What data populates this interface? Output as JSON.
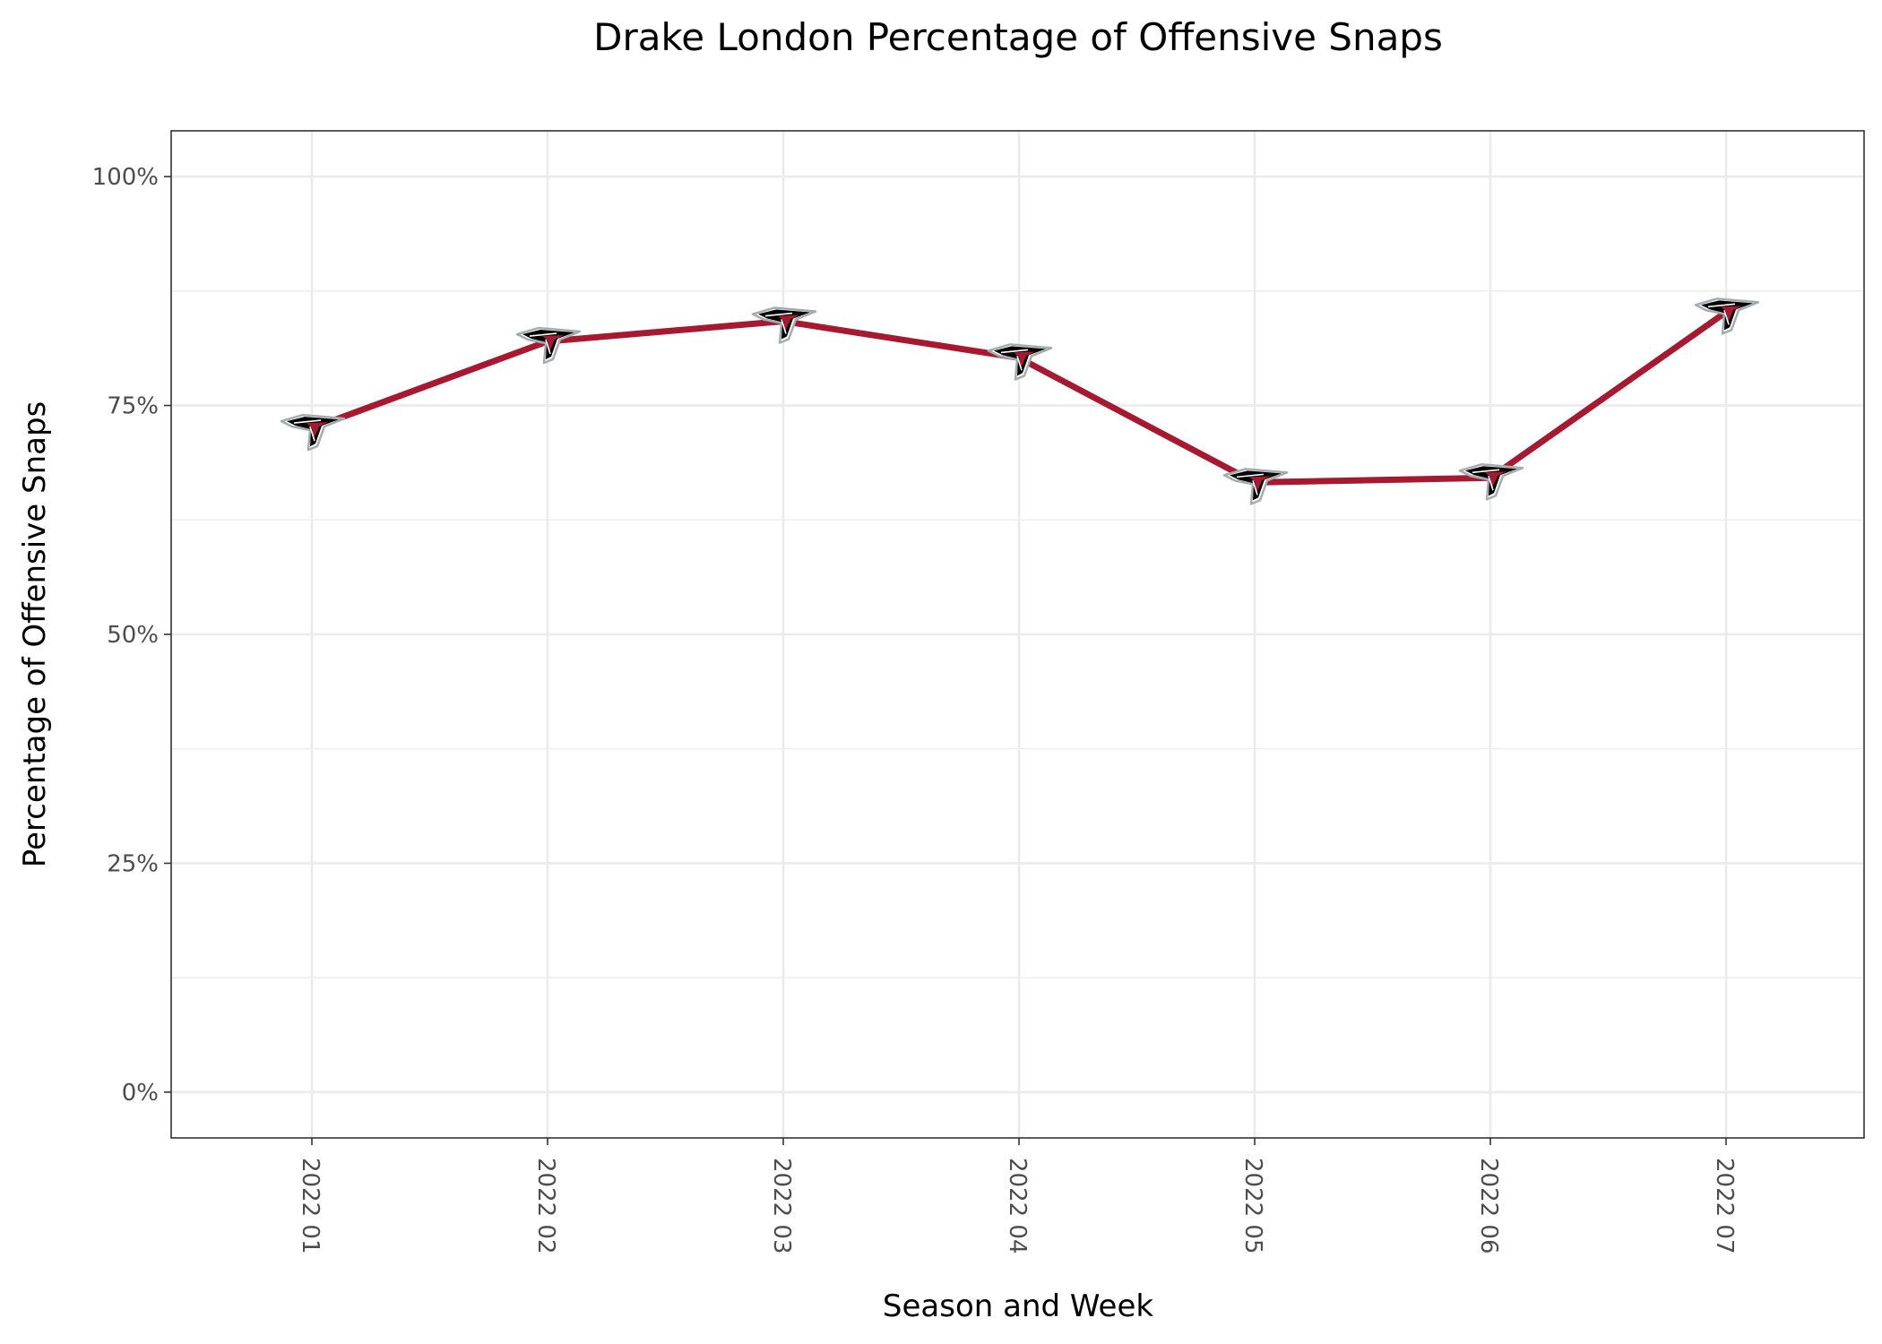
{
  "chart_data": {
    "type": "line",
    "title": "Drake London Percentage of Offensive Snaps",
    "xlabel": "Season and Week",
    "ylabel": "Percentage of Offensive Snaps",
    "categories": [
      "2022 01",
      "2022 02",
      "2022 03",
      "2022 04",
      "2022 05",
      "2022 06",
      "2022 07"
    ],
    "series": [
      {
        "values": [
          0.725,
          0.82,
          0.842,
          0.802,
          0.666,
          0.671,
          0.852
        ]
      }
    ],
    "y_ticks": [
      0,
      0.25,
      0.5,
      0.75,
      1.0
    ],
    "y_tick_labels": [
      "0%",
      "25%",
      "50%",
      "75%",
      "100%"
    ],
    "ylim": [
      -0.05,
      1.05
    ],
    "grid": true,
    "legend": "none",
    "marker": "atlanta-falcons-logo-icon",
    "colors": {
      "line": "#A71930",
      "marker_red": "#A71930",
      "marker_black": "#000000",
      "marker_silver": "#A5ACAF"
    }
  }
}
